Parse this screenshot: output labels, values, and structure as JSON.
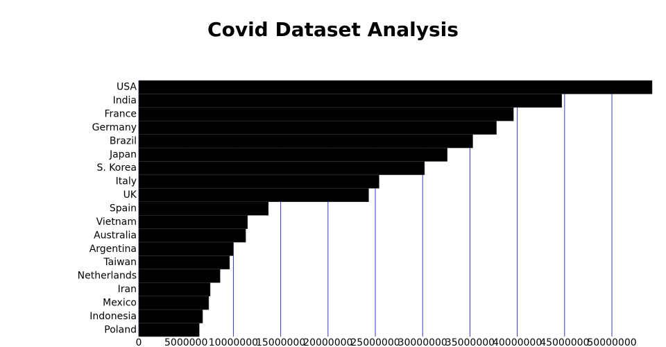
{
  "chart_data": {
    "type": "bar",
    "orientation": "horizontal",
    "title": "Covid Dataset Analysis",
    "categories": [
      "USA",
      "India",
      "France",
      "Germany",
      "Brazil",
      "Japan",
      "S. Korea",
      "Italy",
      "UK",
      "Spain",
      "Vietnam",
      "Australia",
      "Argentina",
      "Taiwan",
      "Netherlands",
      "Iran",
      "Mexico",
      "Indonesia",
      "Poland"
    ],
    "values": [
      54250000,
      44700000,
      39600000,
      37800000,
      35300000,
      32600000,
      30200000,
      25400000,
      24300000,
      13700000,
      11500000,
      11300000,
      10000000,
      9600000,
      8600000,
      7550000,
      7400000,
      6750000,
      6400000
    ],
    "color": "#000000",
    "grid_color": "#3333cc",
    "xlim": [
      0,
      54250000
    ],
    "xticks": [
      0,
      5000000,
      10000000,
      15000000,
      20000000,
      25000000,
      30000000,
      35000000,
      40000000,
      45000000,
      50000000
    ],
    "grid": true
  }
}
